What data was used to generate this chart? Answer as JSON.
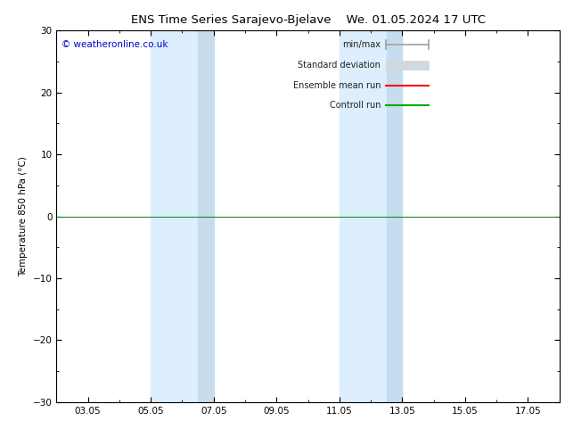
{
  "title_left": "ENS Time Series Sarajevo-Bjelave",
  "title_right": "We. 01.05.2024 17 UTC",
  "ylabel": "Temperature 850 hPa (°C)",
  "ylim": [
    -30,
    30
  ],
  "yticks": [
    -30,
    -20,
    -10,
    0,
    10,
    20,
    30
  ],
  "background_color": "#ffffff",
  "plot_bg_color": "#ffffff",
  "watermark": "© weatheronline.co.uk",
  "watermark_color": "#0000cc",
  "zero_line_color": "#008800",
  "shade_color": "#ddeeff",
  "legend_items": [
    "min/max",
    "Standard deviation",
    "Ensemble mean run",
    "Controll run"
  ],
  "legend_minmax_color": "#a0a0a0",
  "legend_stddev_color": "#d0d8e0",
  "legend_mean_color": "#ff0000",
  "legend_ctrl_color": "#00aa00",
  "shade_bands": [
    {
      "x_start": 4.0,
      "x_end": 5.5
    },
    {
      "x_start": 10.0,
      "x_end": 11.5
    }
  ],
  "shade_bands2": [
    {
      "x_start": 5.5,
      "x_end": 6.0
    },
    {
      "x_start": 11.5,
      "x_end": 12.0
    }
  ],
  "x_ticks_labels": [
    "03.05",
    "05.05",
    "07.05",
    "09.05",
    "11.05",
    "13.05",
    "15.05",
    "17.05"
  ],
  "x_ticks_pos": [
    2,
    4,
    6,
    8,
    10,
    12,
    14,
    16
  ],
  "x_min": 1,
  "x_max": 17,
  "title_fontsize": 9.5,
  "label_fontsize": 7.5,
  "tick_fontsize": 7.5
}
